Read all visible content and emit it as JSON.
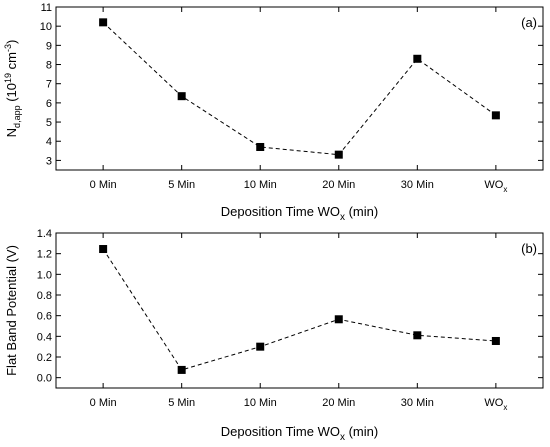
{
  "chart_data": [
    {
      "type": "line",
      "panel_label": "(a)",
      "categories": [
        "0 Min",
        "5 Min",
        "10 Min",
        "20 Min",
        "30 Min",
        "WO"
      ],
      "category_subscripts": [
        "",
        "",
        "",
        "",
        "",
        "x"
      ],
      "values": [
        10.2,
        6.35,
        3.7,
        3.3,
        8.3,
        5.35
      ],
      "ylim": [
        2.5,
        11
      ],
      "yticks": [
        3,
        4,
        5,
        6,
        7,
        8,
        9,
        10,
        11
      ],
      "ylabel": {
        "main": "N",
        "sub": "d,app",
        "paren_open": " (10",
        "sup": "19",
        "unit": " cm",
        "unit_sup": "-3",
        "paren_close": ")"
      },
      "xlabel": {
        "main": "Deposition Time WO",
        "sub": "x",
        "suffix": " (min)"
      },
      "line_style": "dashed",
      "marker": "square",
      "grid": false
    },
    {
      "type": "line",
      "panel_label": "(b)",
      "categories": [
        "0 Min",
        "5 Min",
        "10 Min",
        "20 Min",
        "30 Min",
        "WO"
      ],
      "category_subscripts": [
        "",
        "",
        "",
        "",
        "",
        "x"
      ],
      "values": [
        1.245,
        0.075,
        0.3,
        0.565,
        0.41,
        0.355
      ],
      "ylim": [
        -0.1,
        1.4
      ],
      "yticks": [
        "0.0",
        "0.2",
        "0.4",
        "0.6",
        "0.8",
        "1.0",
        "1.2",
        "1.4"
      ],
      "ylabel": {
        "main": "Flat Band Potential (V)"
      },
      "xlabel": {
        "main": "Deposition Time WO",
        "sub": "x",
        "suffix": " (min)"
      },
      "line_style": "dashed",
      "marker": "square",
      "grid": false
    }
  ]
}
